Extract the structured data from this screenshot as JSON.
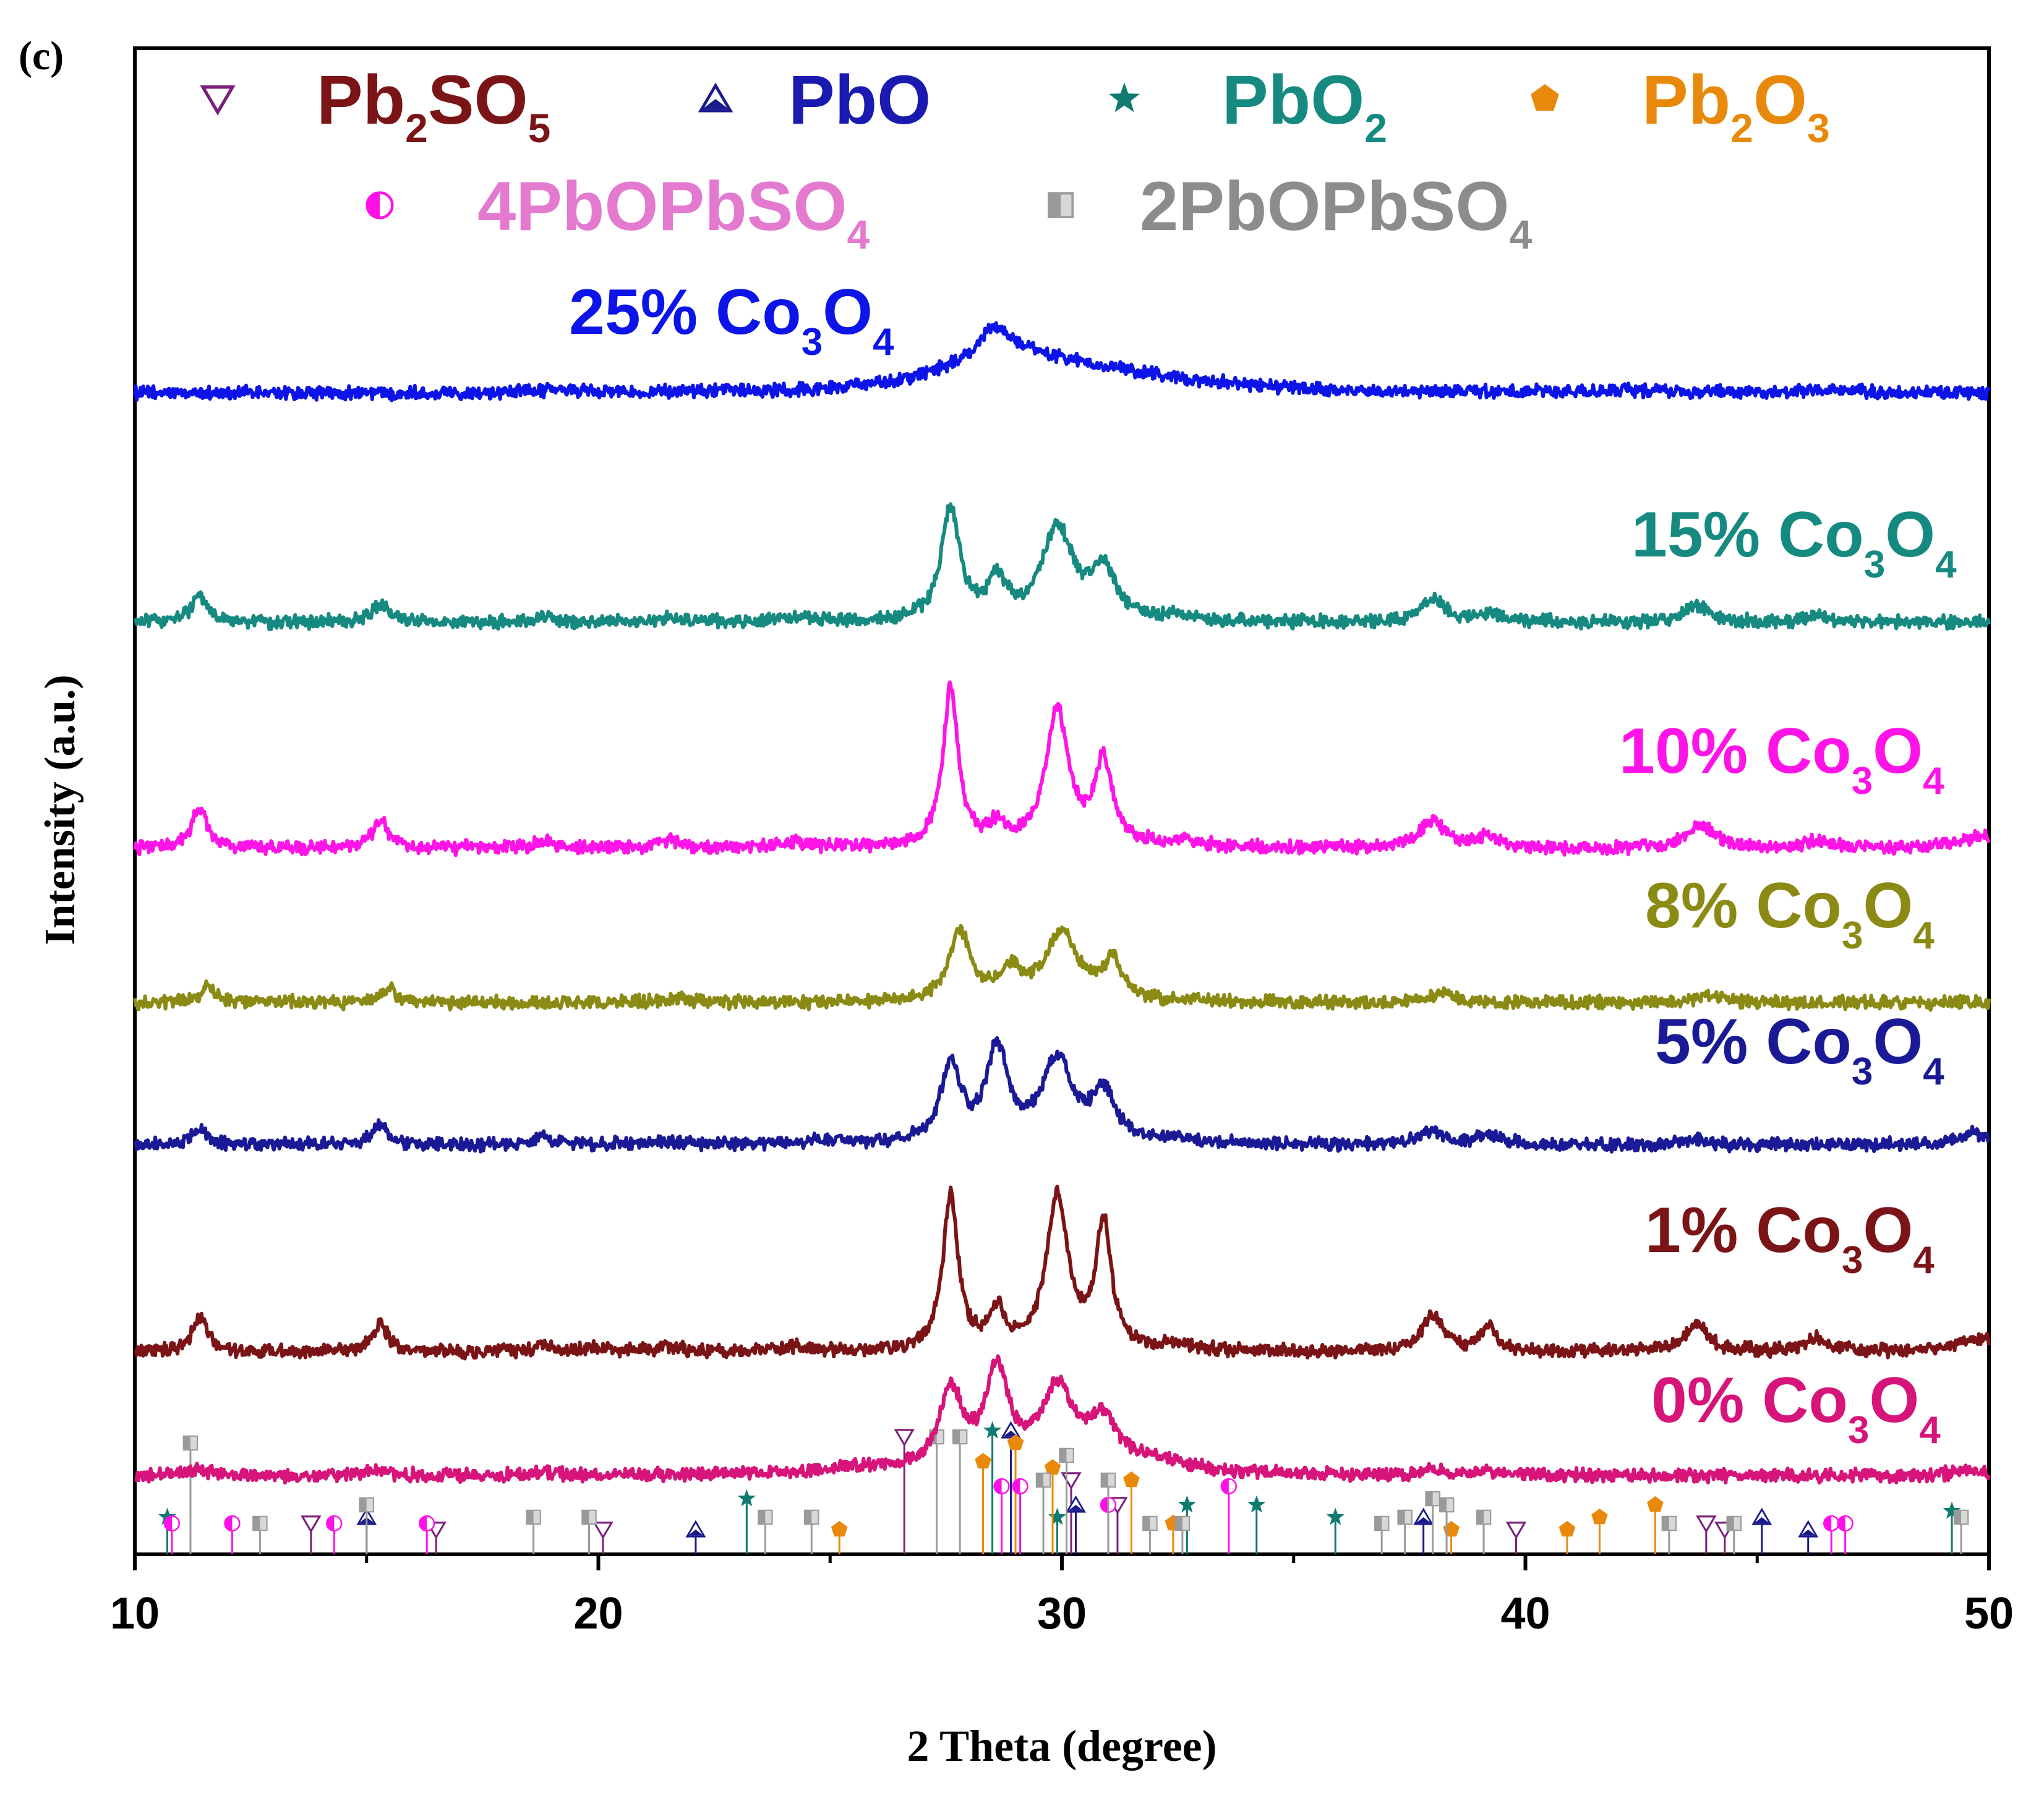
{
  "panel_label": "(c)",
  "chart_data": {
    "type": "line",
    "title": "",
    "xlabel": "2 Theta (degree)",
    "ylabel": "Intensity (a.u.)",
    "xlim": [
      10,
      50
    ],
    "xticks": [
      10,
      20,
      30,
      40,
      50
    ],
    "xtick_labels": [
      "10",
      "20",
      "30",
      "40",
      "50"
    ],
    "grid": false,
    "legend": [
      {
        "name": "Pb2SO5",
        "text": "Pb",
        "parts": [
          [
            "Pb",
            ""
          ],
          [
            "2",
            "sub"
          ],
          [
            "SO",
            ""
          ],
          [
            "5",
            "sub"
          ]
        ],
        "marker": "triangle-down-open",
        "marker_color": "#7a1f7a",
        "text_color": "#7a1416"
      },
      {
        "name": "PbO",
        "text": "PbO",
        "parts": [
          [
            "PbO",
            ""
          ]
        ],
        "marker": "triangle-up",
        "marker_color": "#1a1a8c",
        "text_color": "#1a1ab0"
      },
      {
        "name": "PbO2",
        "text": "PbO",
        "parts": [
          [
            "PbO",
            ""
          ],
          [
            "2",
            "sub"
          ]
        ],
        "marker": "star",
        "marker_color": "#0e7a70",
        "text_color": "#168a80"
      },
      {
        "name": "Pb2O3",
        "text": "Pb",
        "parts": [
          [
            "Pb",
            ""
          ],
          [
            "2",
            "sub"
          ],
          [
            "O",
            ""
          ],
          [
            "3",
            "sub"
          ]
        ],
        "marker": "pentagon",
        "marker_color": "#e8890c",
        "text_color": "#e8890c"
      },
      {
        "name": "4PbOPbSO4",
        "text": "4PbOPbSO",
        "parts": [
          [
            "4PbOPbSO",
            ""
          ],
          [
            "4",
            "sub"
          ]
        ],
        "marker": "half-circle",
        "marker_color": "#ff10e8",
        "text_color": "#e47ad0"
      },
      {
        "name": "2PbOPbSO4",
        "text": "2PbOPbSO",
        "parts": [
          [
            "2PbOPbSO",
            ""
          ],
          [
            "4",
            "sub"
          ]
        ],
        "marker": "half-square",
        "marker_color": "#9a9a9a",
        "text_color": "#8c8c8c"
      }
    ],
    "series": [
      {
        "name": "25% Co3O4",
        "pct": "25%",
        "color": "#0c14e8",
        "baseline": 0.05,
        "scale": 0.75,
        "peaks": [
          [
            19.2,
            0.05,
            0.8
          ],
          [
            26.5,
            0.08,
            1.2
          ],
          [
            27.5,
            0.18,
            0.6
          ],
          [
            28.5,
            0.75,
            0.5
          ],
          [
            29.0,
            0.45,
            0.9
          ],
          [
            30.0,
            0.35,
            1.4
          ],
          [
            31.5,
            0.2,
            1.6
          ],
          [
            33.0,
            0.08,
            2.0
          ],
          [
            42.5,
            0.05,
            1.0
          ],
          [
            46.5,
            0.05,
            1.0
          ]
        ]
      },
      {
        "name": "15% Co3O4",
        "pct": "15%",
        "color": "#168a80",
        "baseline": 0.04,
        "scale": 0.75,
        "peaks": [
          [
            11.4,
            0.55,
            0.22
          ],
          [
            15.3,
            0.4,
            0.22
          ],
          [
            18.8,
            0.15,
            0.2
          ],
          [
            21.5,
            0.1,
            0.3
          ],
          [
            24.2,
            0.1,
            0.4
          ],
          [
            27.6,
            2.4,
            0.24
          ],
          [
            28.6,
            0.8,
            0.25
          ],
          [
            29.9,
            2.0,
            0.4
          ],
          [
            30.9,
            1.1,
            0.3
          ],
          [
            32.5,
            0.12,
            0.5
          ],
          [
            38.0,
            0.5,
            0.3
          ],
          [
            39.2,
            0.2,
            0.3
          ],
          [
            43.7,
            0.35,
            0.35
          ],
          [
            46.3,
            0.15,
            0.3
          ]
        ]
      },
      {
        "name": "10% Co3O4",
        "pct": "10%",
        "color": "#ff14e8",
        "baseline": 0.04,
        "scale": 0.75,
        "peaks": [
          [
            11.4,
            0.9,
            0.2
          ],
          [
            15.3,
            0.6,
            0.2
          ],
          [
            18.8,
            0.15,
            0.2
          ],
          [
            21.5,
            0.15,
            0.3
          ],
          [
            24.2,
            0.1,
            0.4
          ],
          [
            27.6,
            3.4,
            0.2
          ],
          [
            28.6,
            0.4,
            0.2
          ],
          [
            29.9,
            2.9,
            0.3
          ],
          [
            30.9,
            1.8,
            0.22
          ],
          [
            32.5,
            0.12,
            0.5
          ],
          [
            38.0,
            0.6,
            0.3
          ],
          [
            39.2,
            0.3,
            0.2
          ],
          [
            43.8,
            0.5,
            0.35
          ],
          [
            46.3,
            0.15,
            0.3
          ],
          [
            49.8,
            0.25,
            0.5
          ]
        ]
      },
      {
        "name": "8% Co3O4",
        "pct": "8%",
        "color": "#8a8a14",
        "baseline": 0.04,
        "scale": 0.75,
        "peaks": [
          [
            11.6,
            0.35,
            0.2
          ],
          [
            15.5,
            0.3,
            0.2
          ],
          [
            21.8,
            0.06,
            0.4
          ],
          [
            27.8,
            1.5,
            0.28
          ],
          [
            28.9,
            0.6,
            0.3
          ],
          [
            30.0,
            1.45,
            0.42
          ],
          [
            31.1,
            0.8,
            0.25
          ],
          [
            38.2,
            0.22,
            0.3
          ],
          [
            44.0,
            0.15,
            0.35
          ]
        ]
      },
      {
        "name": "5% Co3O4",
        "pct": "5%",
        "color": "#1a1a96",
        "baseline": 0.04,
        "scale": 0.75,
        "peaks": [
          [
            11.4,
            0.35,
            0.2
          ],
          [
            15.3,
            0.42,
            0.2
          ],
          [
            18.8,
            0.2,
            0.2
          ],
          [
            21.2,
            0.05,
            0.4
          ],
          [
            25.0,
            0.08,
            0.5
          ],
          [
            27.6,
            1.7,
            0.25
          ],
          [
            28.6,
            2.0,
            0.28
          ],
          [
            29.9,
            1.8,
            0.4
          ],
          [
            30.9,
            1.0,
            0.3
          ],
          [
            32.5,
            0.1,
            0.5
          ],
          [
            38.0,
            0.3,
            0.3
          ],
          [
            39.2,
            0.2,
            0.3
          ],
          [
            43.7,
            0.1,
            0.35
          ],
          [
            49.7,
            0.25,
            0.4
          ]
        ]
      },
      {
        "name": "1% Co3O4",
        "pct": "1%",
        "color": "#7a1416",
        "baseline": 0.04,
        "scale": 0.75,
        "peaks": [
          [
            11.4,
            0.75,
            0.2
          ],
          [
            15.3,
            0.6,
            0.2
          ],
          [
            18.8,
            0.15,
            0.2
          ],
          [
            20.0,
            0.1,
            0.3
          ],
          [
            21.5,
            0.12,
            0.3
          ],
          [
            24.2,
            0.1,
            0.4
          ],
          [
            27.6,
            3.3,
            0.2
          ],
          [
            28.6,
            0.8,
            0.2
          ],
          [
            29.9,
            3.3,
            0.28
          ],
          [
            30.9,
            2.7,
            0.2
          ],
          [
            32.5,
            0.12,
            0.5
          ],
          [
            38.0,
            0.75,
            0.3
          ],
          [
            39.2,
            0.5,
            0.2
          ],
          [
            43.7,
            0.6,
            0.3
          ],
          [
            46.3,
            0.3,
            0.3
          ],
          [
            49.8,
            0.3,
            0.5
          ]
        ]
      },
      {
        "name": "0% Co3O4",
        "pct": "0%",
        "color": "#d6147a",
        "baseline": 0.04,
        "scale": 0.75,
        "peaks": [
          [
            11.3,
            0.15,
            0.25
          ],
          [
            15.3,
            0.12,
            0.25
          ],
          [
            18.8,
            0.06,
            0.3
          ],
          [
            25.8,
            0.15,
            1.0
          ],
          [
            27.6,
            1.7,
            0.3
          ],
          [
            28.6,
            2.1,
            0.32
          ],
          [
            29.9,
            1.75,
            0.45
          ],
          [
            30.9,
            1.0,
            0.35
          ],
          [
            32.0,
            0.25,
            1.0
          ],
          [
            38.0,
            0.12,
            0.3
          ],
          [
            39.2,
            0.08,
            0.3
          ],
          [
            49.5,
            0.1,
            0.4
          ]
        ]
      }
    ],
    "reference_lines": {
      "Pb2SO5": [
        [
          13.8,
          0.25
        ],
        [
          16.5,
          0.2
        ],
        [
          20.1,
          0.2
        ],
        [
          26.6,
          0.95
        ],
        [
          30.2,
          0.6
        ],
        [
          31.2,
          0.4
        ],
        [
          39.8,
          0.2
        ],
        [
          43.9,
          0.25
        ],
        [
          44.3,
          0.2
        ]
      ],
      "PbO": [
        [
          15.0,
          0.3
        ],
        [
          22.1,
          0.2
        ],
        [
          28.9,
          1.0
        ],
        [
          30.3,
          0.4
        ],
        [
          37.8,
          0.3
        ],
        [
          45.1,
          0.3
        ],
        [
          46.1,
          0.2
        ]
      ],
      "PbO2": [
        [
          10.7,
          0.3
        ],
        [
          23.2,
          0.45
        ],
        [
          28.5,
          1.0
        ],
        [
          29.9,
          0.3
        ],
        [
          32.7,
          0.4
        ],
        [
          34.2,
          0.4
        ],
        [
          35.9,
          0.3
        ],
        [
          49.2,
          0.35
        ]
      ],
      "Pb2O3": [
        [
          25.2,
          0.2
        ],
        [
          28.3,
          0.75
        ],
        [
          29.0,
          0.9
        ],
        [
          29.8,
          0.7
        ],
        [
          31.5,
          0.6
        ],
        [
          32.4,
          0.25
        ],
        [
          38.4,
          0.2
        ],
        [
          40.9,
          0.2
        ],
        [
          41.6,
          0.3
        ],
        [
          42.8,
          0.4
        ]
      ],
      "4PbOPbSO4": [
        [
          10.8,
          0.25
        ],
        [
          12.1,
          0.25
        ],
        [
          14.3,
          0.25
        ],
        [
          16.3,
          0.25
        ],
        [
          28.7,
          0.55
        ],
        [
          29.1,
          0.55
        ],
        [
          31.0,
          0.4
        ],
        [
          33.6,
          0.55
        ],
        [
          46.6,
          0.25
        ],
        [
          46.9,
          0.25
        ]
      ],
      "2PbOPbSO4": [
        [
          11.2,
          0.9
        ],
        [
          12.7,
          0.25
        ],
        [
          15.0,
          0.4
        ],
        [
          18.6,
          0.3
        ],
        [
          19.8,
          0.3
        ],
        [
          23.6,
          0.3
        ],
        [
          24.6,
          0.3
        ],
        [
          27.3,
          0.95
        ],
        [
          27.8,
          0.95
        ],
        [
          29.6,
          0.6
        ],
        [
          30.1,
          0.8
        ],
        [
          31.0,
          0.6
        ],
        [
          31.9,
          0.25
        ],
        [
          32.6,
          0.25
        ],
        [
          36.9,
          0.25
        ],
        [
          37.4,
          0.3
        ],
        [
          38.0,
          0.45
        ],
        [
          38.3,
          0.4
        ],
        [
          39.1,
          0.3
        ],
        [
          43.1,
          0.25
        ],
        [
          44.5,
          0.25
        ],
        [
          49.4,
          0.3
        ]
      ]
    }
  }
}
